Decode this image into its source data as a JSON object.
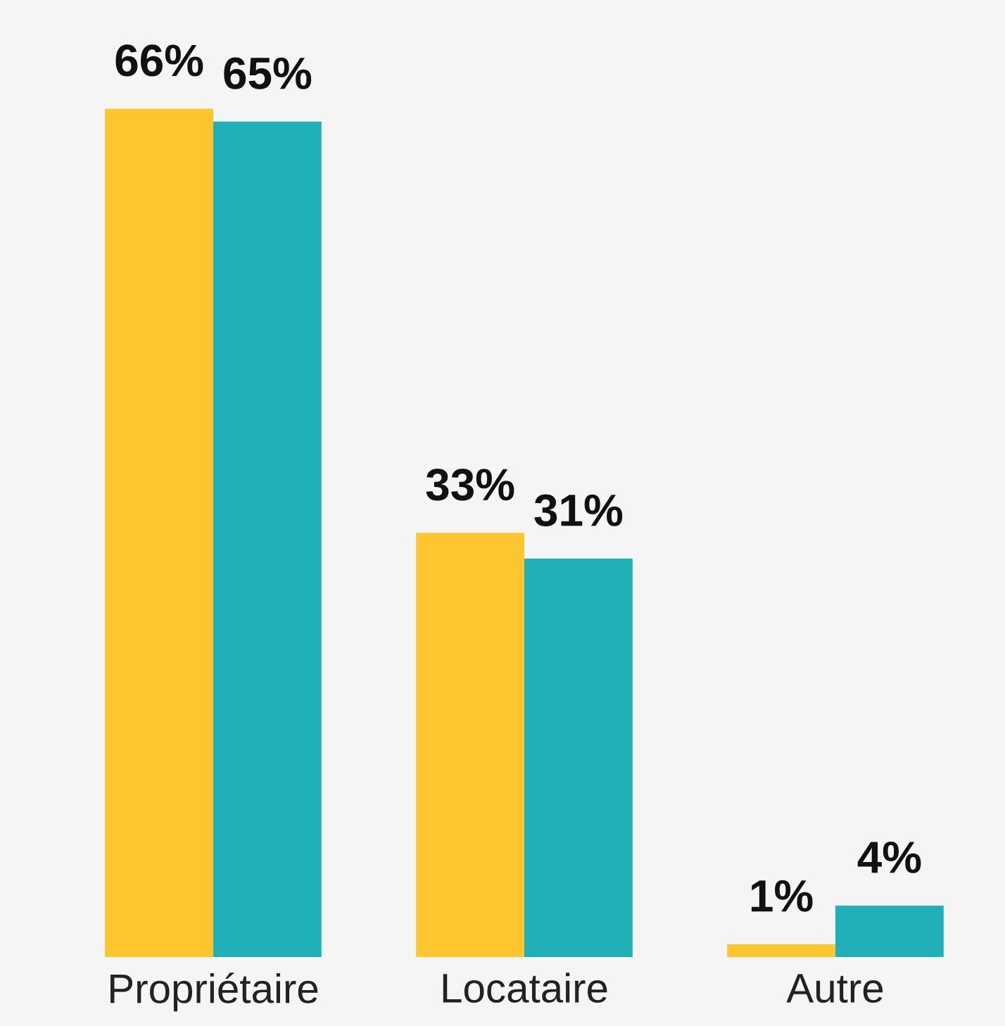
{
  "chart_data": {
    "type": "bar",
    "categories": [
      "Propriétaire",
      "Locataire",
      "Autre"
    ],
    "series": [
      {
        "color": "#fdc530",
        "values": [
          66,
          33,
          1
        ],
        "value_labels": [
          "66%",
          "33%",
          "1%"
        ]
      },
      {
        "color": "#20b0b8",
        "values": [
          65,
          31,
          4
        ],
        "value_labels": [
          "65%",
          "31%",
          "4%"
        ]
      }
    ],
    "grid": false,
    "legend": false
  }
}
